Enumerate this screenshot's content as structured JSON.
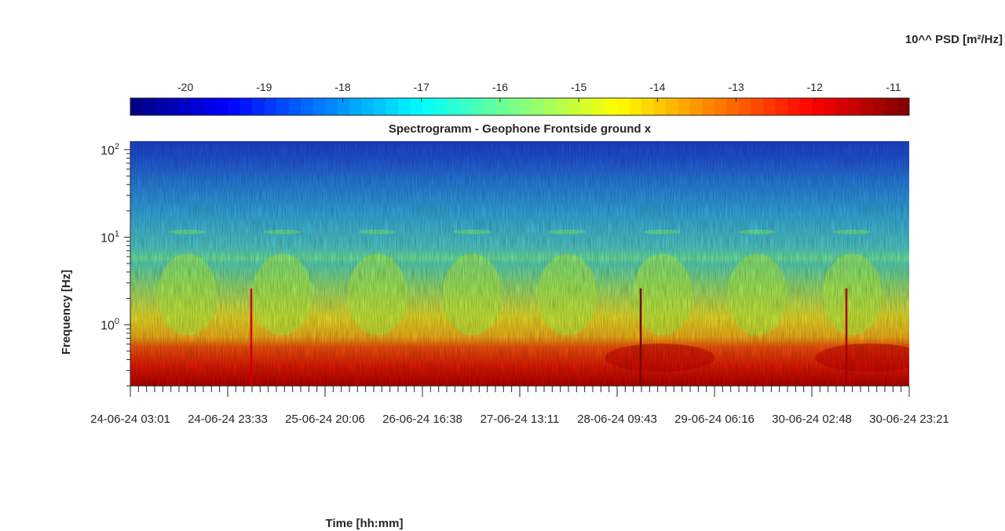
{
  "chart_data": {
    "type": "heatmap",
    "title": "Spectrogramm - Geophone Frontside ground x",
    "xlabel": "Time [hh:mm]",
    "ylabel": "Frequency [Hz]",
    "colorbar_label": "10^^ PSD [m²/Hz]",
    "colormap": "jet",
    "clim": [
      -20.7,
      -10.8
    ],
    "colorbar_ticks": [
      -20,
      -19,
      -18,
      -17,
      -16,
      -15,
      -14,
      -13,
      -12,
      -11
    ],
    "colorbar_tick_labels": [
      "-20",
      "-19",
      "-18",
      "-17",
      "-16",
      "-15",
      "-14",
      "-13",
      "-12",
      "-11"
    ],
    "y_scale": "log",
    "ylim": [
      0.2,
      125
    ],
    "y_ticks": [
      1,
      10,
      100
    ],
    "y_tick_labels": [
      {
        "base": "10",
        "exp": "0"
      },
      {
        "base": "10",
        "exp": "1"
      },
      {
        "base": "10",
        "exp": "2"
      }
    ],
    "x_tick_labels": [
      "24-06-24  03:01",
      "24-06-24  23:33",
      "25-06-24  20:06",
      "26-06-24  16:38",
      "27-06-24  13:11",
      "28-06-24  09:43",
      "29-06-24  06:16",
      "30-06-24  02:48",
      "30-06-24  23:21"
    ],
    "bands": [
      {
        "f_low": 0.2,
        "f_high": 0.65,
        "log_psd": -12.3
      },
      {
        "f_low": 0.65,
        "f_high": 1.2,
        "log_psd": -14.6
      },
      {
        "f_low": 1.2,
        "f_high": 5.3,
        "log_psd": -15.6
      },
      {
        "f_low": 5.3,
        "f_high": 5.6,
        "log_psd": -16.2
      },
      {
        "f_low": 5.6,
        "f_high": 20,
        "log_psd": -17.5
      },
      {
        "f_low": 20,
        "f_high": 45,
        "log_psd": -18.2
      },
      {
        "f_low": 45,
        "f_high": 125,
        "log_psd": -19.5
      }
    ],
    "events": [
      {
        "time": "24-06-24  23:33",
        "log_psd": -12.0
      },
      {
        "time": "28-06-24  09:43",
        "log_psd": -11.0
      },
      {
        "time": "30-06-24  23:21",
        "log_psd": -11.5
      }
    ],
    "grid": false,
    "legend": "none"
  }
}
